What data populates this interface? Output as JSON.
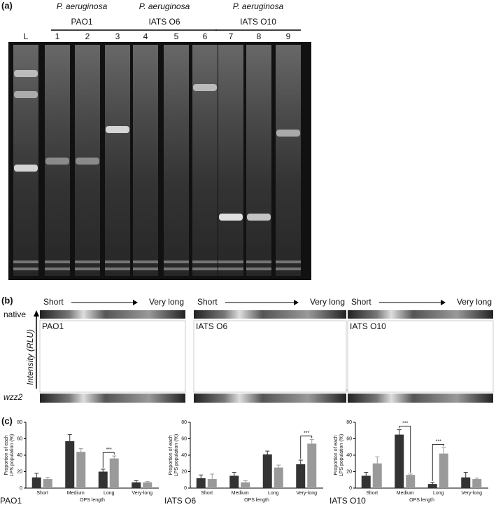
{
  "panel_a": {
    "label": "(a)",
    "groups": [
      {
        "species": "P. aeruginosa",
        "strain": "PAO1"
      },
      {
        "species": "P. aeruginosa",
        "strain": "IATS O6"
      },
      {
        "species": "P. aeruginosa",
        "strain": "IATS O10"
      }
    ],
    "lanes": [
      "L",
      "1",
      "2",
      "3",
      "4",
      "5",
      "6",
      "7",
      "8",
      "9"
    ]
  },
  "panel_b": {
    "label": "(b)",
    "start": "Short",
    "end": "Very long",
    "top_label": "native",
    "bottom_label": "wzz2",
    "axis_label": "Intensity (RLU)",
    "profiles": [
      "PAO1",
      "IATS O6",
      "IATS O10"
    ]
  },
  "panel_c": {
    "label": "(c)"
  },
  "chart_data": [
    {
      "type": "bar",
      "title": "PAO1",
      "xlabel": "OPS length",
      "ylabel": [
        "Proportion of each",
        "LPS population (%)"
      ],
      "categories": [
        "Short",
        "Medium",
        "Long",
        "Very-long"
      ],
      "ylim": [
        0,
        80
      ],
      "yticks": [
        0,
        20,
        40,
        60,
        80
      ],
      "series": [
        {
          "color": "#333333",
          "values": [
            13,
            57,
            20,
            7
          ],
          "errors": [
            5,
            8,
            3,
            2
          ]
        },
        {
          "color": "#9a9a9a",
          "values": [
            11,
            44,
            36,
            7
          ],
          "errors": [
            2,
            4,
            3,
            1
          ]
        }
      ],
      "annotations": [
        {
          "text": "***",
          "category": "Long"
        }
      ]
    },
    {
      "type": "bar",
      "title": "IATS O6",
      "xlabel": "OPS length",
      "ylabel": [
        "Proportion of each",
        "LPS population (%)"
      ],
      "categories": [
        "Short",
        "Medium",
        "Long",
        "Very-long"
      ],
      "ylim": [
        0,
        80
      ],
      "yticks": [
        0,
        20,
        40,
        60,
        80
      ],
      "series": [
        {
          "color": "#333333",
          "values": [
            12,
            15,
            41,
            29
          ],
          "errors": [
            4,
            4,
            4,
            5
          ]
        },
        {
          "color": "#9a9a9a",
          "values": [
            11,
            7,
            25,
            54
          ],
          "errors": [
            6,
            2,
            3,
            5
          ]
        }
      ],
      "annotations": [
        {
          "text": "***",
          "category": "Very-long"
        }
      ]
    },
    {
      "type": "bar",
      "title": "IATS O10",
      "xlabel": "OPS length",
      "ylabel": [
        "Proportion of each",
        "LPS population (%)"
      ],
      "categories": [
        "Short",
        "Medium",
        "Long",
        "Very-long"
      ],
      "ylim": [
        0,
        80
      ],
      "yticks": [
        0,
        20,
        40,
        60,
        80
      ],
      "series": [
        {
          "color": "#333333",
          "values": [
            15,
            65,
            5,
            13
          ],
          "errors": [
            4,
            6,
            2,
            6
          ]
        },
        {
          "color": "#9a9a9a",
          "values": [
            30,
            16,
            42,
            11
          ],
          "errors": [
            8,
            1,
            7,
            1
          ]
        }
      ],
      "annotations": [
        {
          "text": "***",
          "category": "Medium"
        },
        {
          "text": "***",
          "category": "Long"
        }
      ]
    }
  ]
}
